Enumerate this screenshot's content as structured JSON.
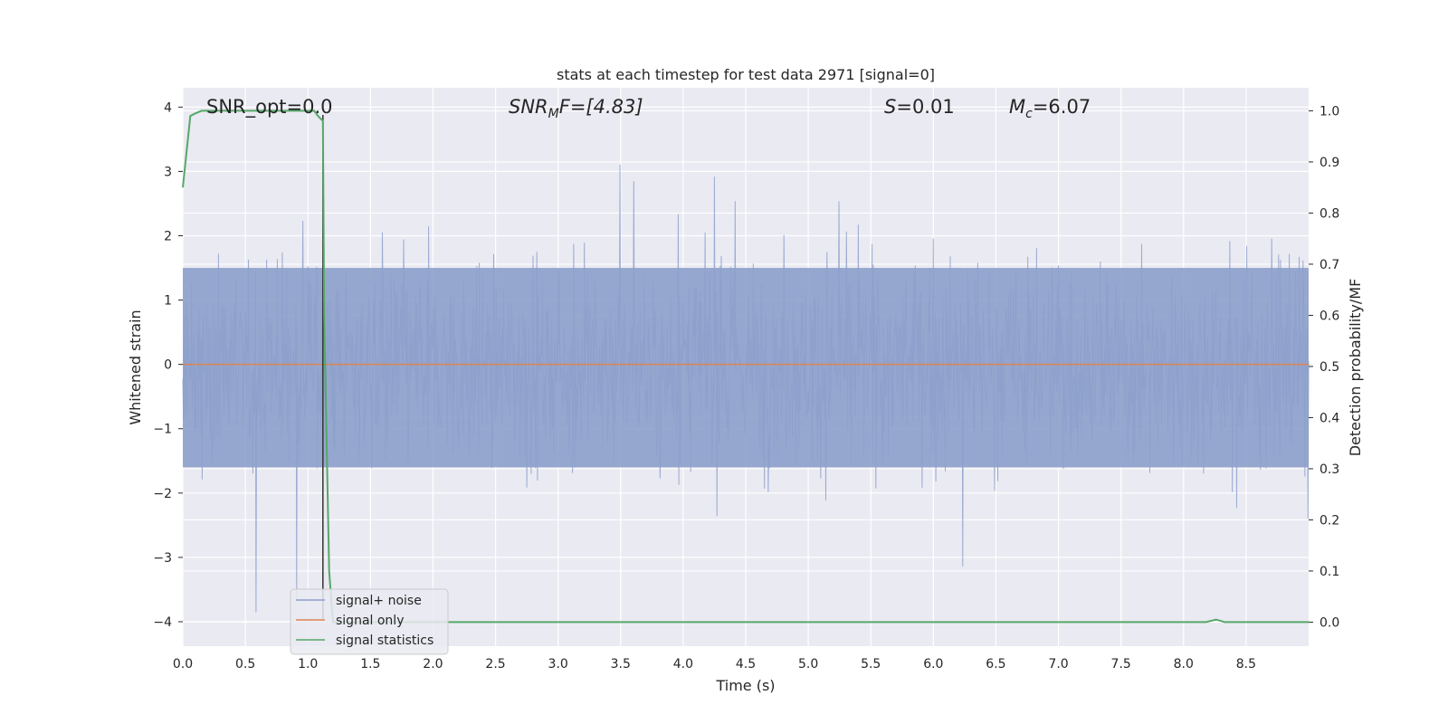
{
  "chart_data": {
    "type": "line",
    "title": "stats at each timestep for test data 2971 [signal=0]",
    "xlabel": "Time (s)",
    "ylabel_left": "Whitened strain",
    "ylabel_right": "Detection probability/MF",
    "xlim": [
      0.0,
      9.0
    ],
    "ylim_left": [
      -4.38,
      4.3
    ],
    "ylim_right": [
      -0.047,
      1.045
    ],
    "x_ticks": [
      "0.0",
      "0.5",
      "1.0",
      "1.5",
      "2.0",
      "2.5",
      "3.0",
      "3.5",
      "4.0",
      "4.5",
      "5.0",
      "5.5",
      "6.0",
      "6.5",
      "7.0",
      "7.5",
      "8.0",
      "8.5"
    ],
    "y_ticks_left": [
      "4",
      "3",
      "2",
      "1",
      "0",
      "−1",
      "−2",
      "−3",
      "−4"
    ],
    "y_ticks_right": [
      "1.0",
      "0.9",
      "0.8",
      "0.7",
      "0.6",
      "0.5",
      "0.4",
      "0.3",
      "0.2",
      "0.1",
      "0.0"
    ],
    "grid": true,
    "annotations": {
      "snr_opt": "SNR_opt=0.0",
      "snr_mf_main": "SNR",
      "snr_mf_sub": "M",
      "snr_mf_rest": "F=[4.83]",
      "s_main": "S",
      "s_rest": "=0.01",
      "mc_main": "M",
      "mc_sub": "c",
      "mc_rest": "=6.07"
    },
    "legend": {
      "placement": "lower-left",
      "entries": [
        "signal+ noise",
        "signal only",
        "signal statistics"
      ]
    },
    "series": [
      {
        "name": "signal+ noise",
        "axis": "left",
        "color": "#8da0cb",
        "description_values": {
          "typical_amplitude_range": [
            -2.0,
            2.3
          ],
          "max": 3.93,
          "min": -4.0
        }
      },
      {
        "name": "signal only",
        "axis": "left",
        "color": "#dd8452",
        "x": [
          0.0,
          9.0
        ],
        "y": [
          0.0,
          0.0
        ]
      },
      {
        "name": "signal statistics",
        "axis": "right",
        "color": "#55a868",
        "x": [
          0.0,
          0.06,
          0.1,
          0.15,
          0.2,
          0.5,
          0.8,
          1.05,
          1.08,
          1.12,
          1.13,
          1.17,
          1.2,
          1.25,
          2.0,
          3.0,
          4.0,
          5.0,
          6.0,
          7.0,
          7.5,
          8.0,
          8.18,
          8.26,
          8.33,
          8.5,
          9.0
        ],
        "y": [
          0.85,
          0.99,
          0.995,
          1.0,
          1.0,
          1.0,
          1.0,
          1.0,
          0.99,
          0.98,
          0.6,
          0.1,
          0.0,
          0.0,
          0.0,
          0.0,
          0.0,
          0.0,
          0.0,
          0.0,
          0.0,
          0.0,
          0.0,
          0.005,
          0.0,
          0.0,
          0.0
        ]
      }
    ],
    "vertical_marker_x": 1.12
  }
}
